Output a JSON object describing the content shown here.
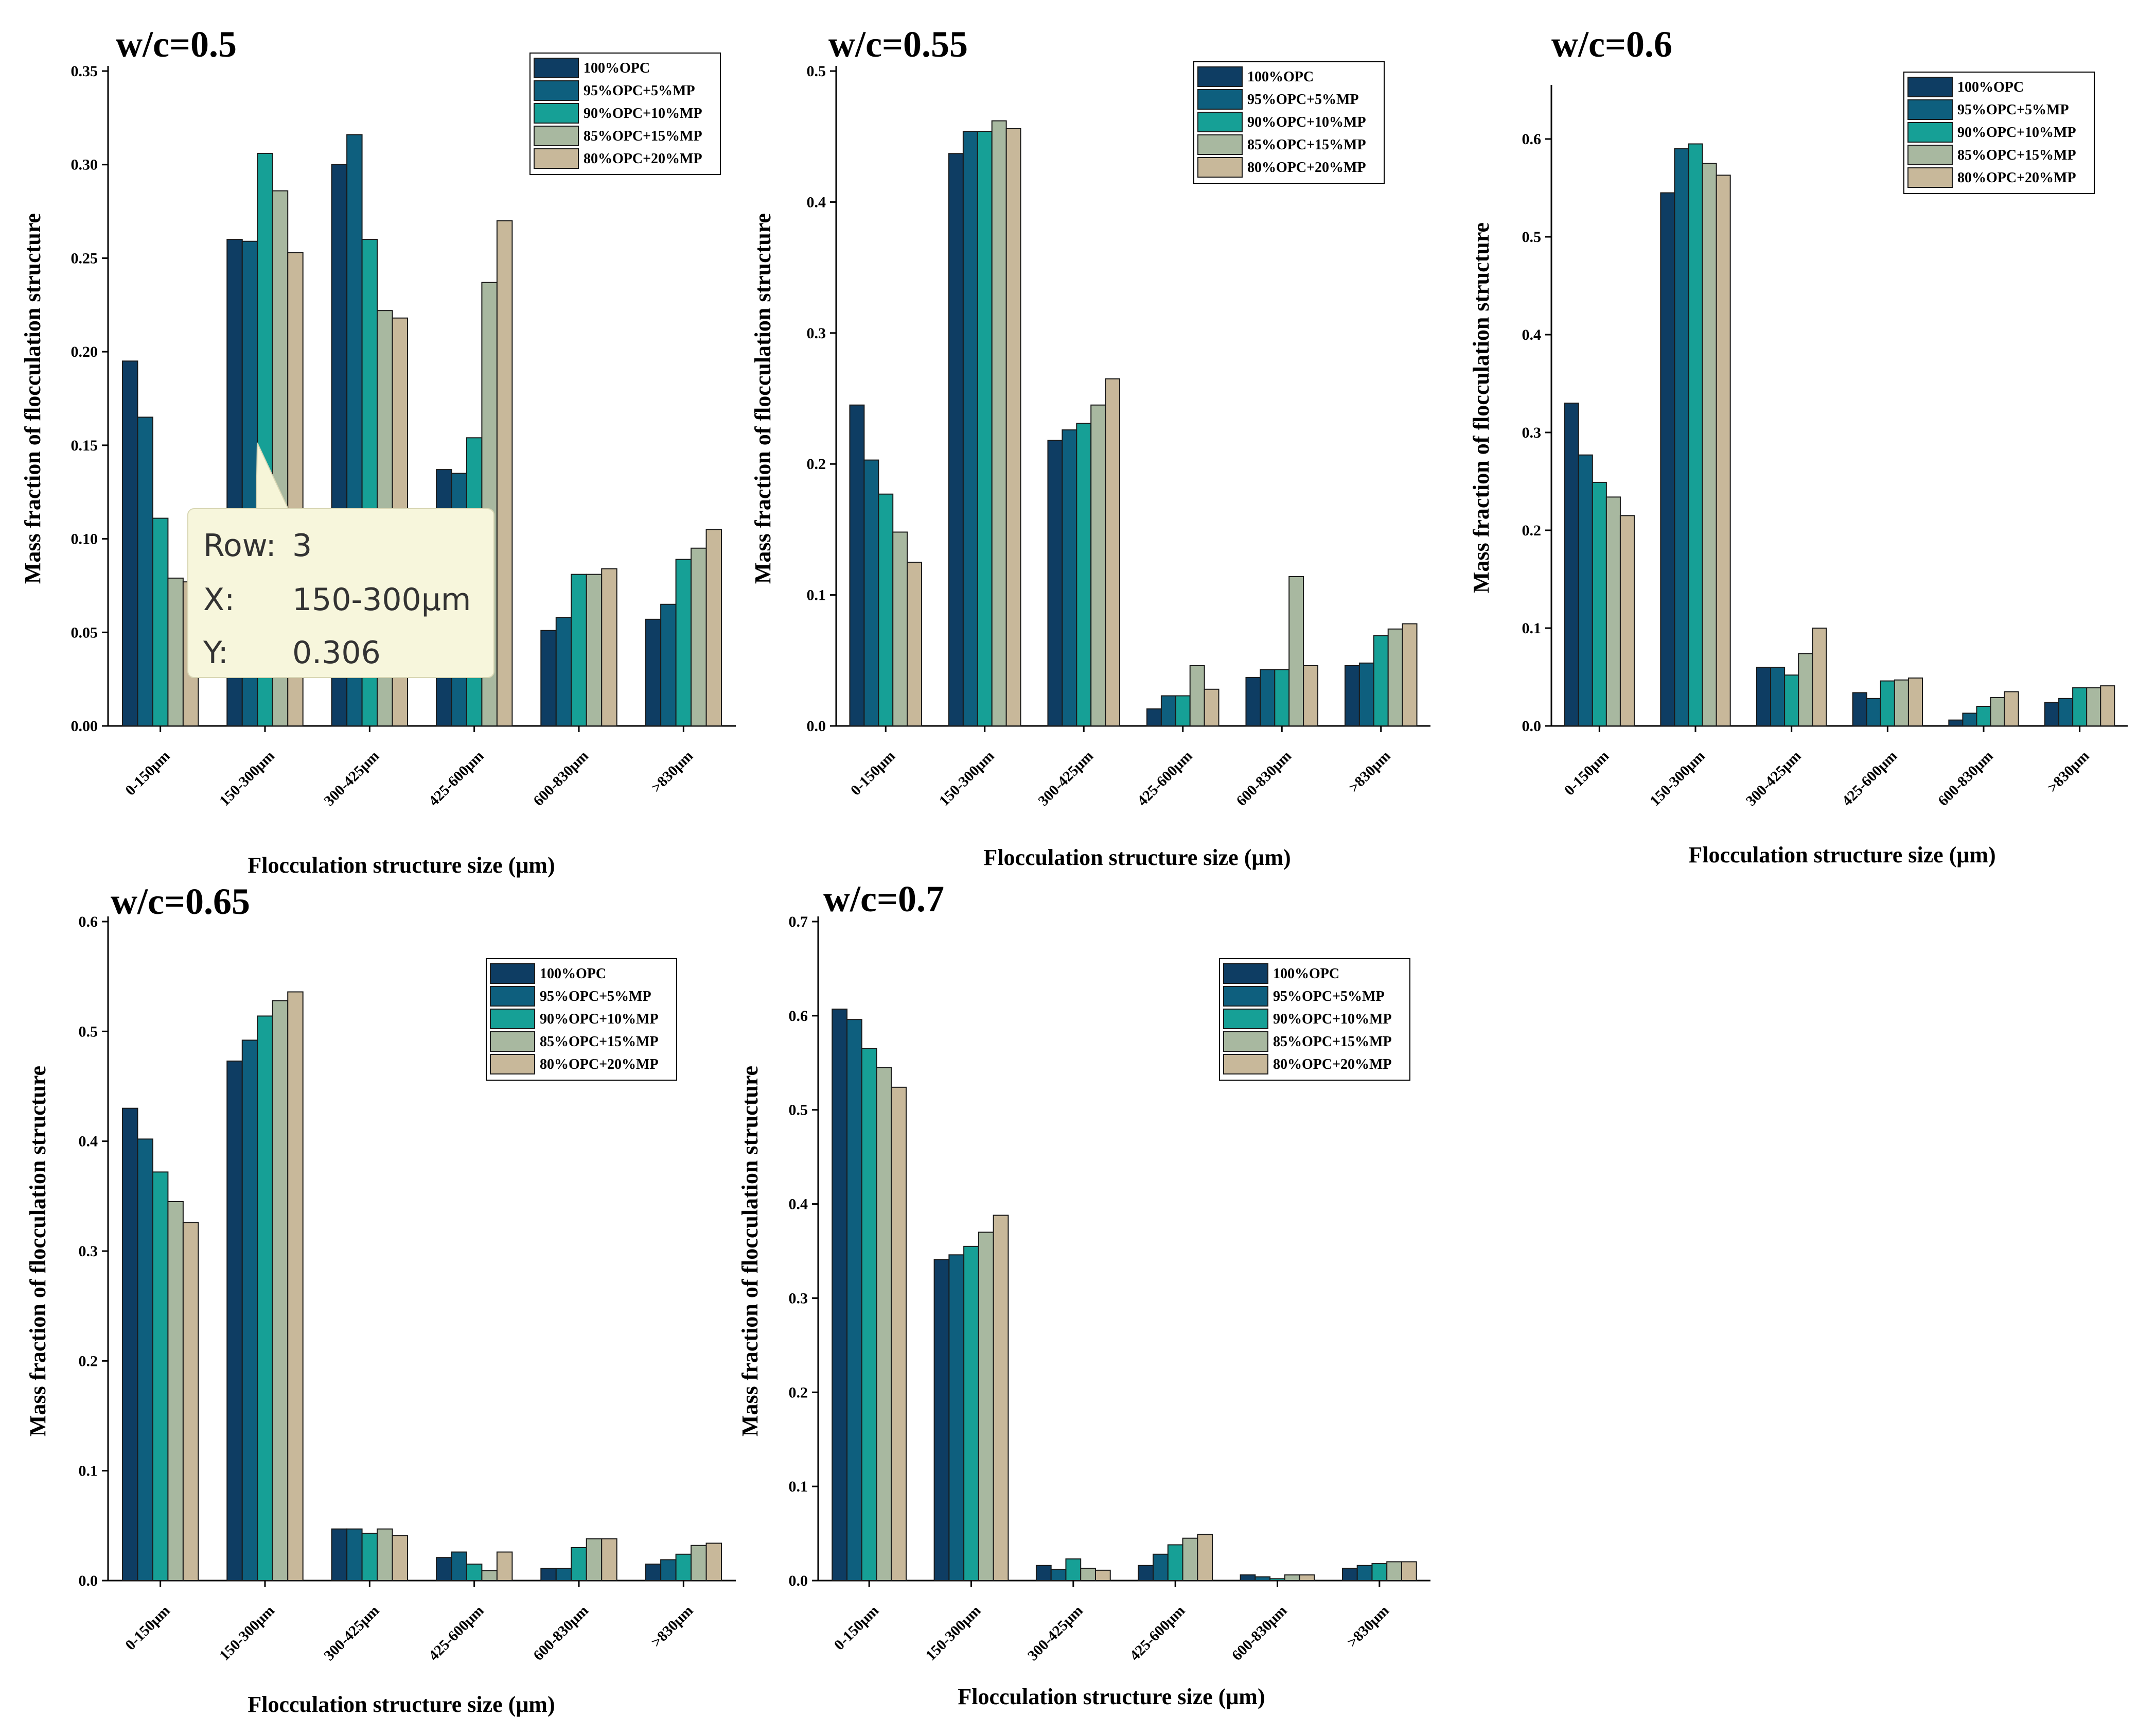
{
  "figure": {
    "colors": [
      "#0e3d63",
      "#0e5f7e",
      "#16a096",
      "#a8b8a0",
      "#c8b89a"
    ],
    "tooltip": {
      "row_label": "Row:",
      "row_value": "3",
      "x_label": "X:",
      "x_value": "150-300μm",
      "y_label": "Y:",
      "y_value": "0.306"
    }
  },
  "chart_data": [
    {
      "type": "bar",
      "title": "w/c=0.5",
      "xlabel": "Flocculation structure size (μm)",
      "ylabel": "Mass fraction of flocculation structure",
      "ylim": [
        0,
        0.35
      ],
      "yticks": [
        "0.00",
        "0.05",
        "0.10",
        "0.15",
        "0.20",
        "0.25",
        "0.30",
        "0.35"
      ],
      "categories": [
        "0-150μm",
        "150-300μm",
        "300-425μm",
        "425-600μm",
        "600-830μm",
        ">830μm"
      ],
      "series": [
        {
          "name": "100%OPC",
          "values": [
            0.195,
            0.26,
            0.3,
            0.137,
            0.051,
            0.057
          ]
        },
        {
          "name": "95%OPC+5%MP",
          "values": [
            0.165,
            0.259,
            0.316,
            0.135,
            0.058,
            0.065
          ]
        },
        {
          "name": "90%OPC+10%MP",
          "values": [
            0.111,
            0.306,
            0.26,
            0.154,
            0.081,
            0.089
          ]
        },
        {
          "name": "85%OPC+15%MP",
          "values": [
            0.079,
            0.286,
            0.222,
            0.237,
            0.081,
            0.095
          ]
        },
        {
          "name": "80%OPC+20%MP",
          "values": [
            0.077,
            0.253,
            0.218,
            0.27,
            0.084,
            0.105
          ]
        }
      ]
    },
    {
      "type": "bar",
      "title": "w/c=0.55",
      "xlabel": "Flocculation structure size (μm)",
      "ylabel": "Mass fraction of flocculation structure",
      "ylim": [
        0,
        0.5
      ],
      "yticks": [
        "0.0",
        "0.1",
        "0.2",
        "0.3",
        "0.4",
        "0.5"
      ],
      "categories": [
        "0-150μm",
        "150-300μm",
        "300-425μm",
        "425-600μm",
        "600-830μm",
        ">830μm"
      ],
      "series": [
        {
          "name": "100%OPC",
          "values": [
            0.245,
            0.437,
            0.218,
            0.013,
            0.037,
            0.046
          ]
        },
        {
          "name": "95%OPC+5%MP",
          "values": [
            0.203,
            0.454,
            0.226,
            0.023,
            0.043,
            0.048
          ]
        },
        {
          "name": "90%OPC+10%MP",
          "values": [
            0.177,
            0.454,
            0.231,
            0.023,
            0.043,
            0.069
          ]
        },
        {
          "name": "85%OPC+15%MP",
          "values": [
            0.148,
            0.462,
            0.245,
            0.046,
            0.114,
            0.074
          ]
        },
        {
          "name": "80%OPC+20%MP",
          "values": [
            0.125,
            0.456,
            0.265,
            0.028,
            0.046,
            0.078
          ]
        }
      ]
    },
    {
      "type": "bar",
      "title": "w/c=0.6",
      "xlabel": "Flocculation structure size (μm)",
      "ylabel": "Mass fraction of flocculation structure",
      "ylim": [
        0,
        0.65
      ],
      "yticks": [
        "0.0",
        "0.1",
        "0.2",
        "0.3",
        "0.4",
        "0.5",
        "0.6"
      ],
      "categories": [
        "0-150μm",
        "150-300μm",
        "300-425μm",
        "425-600μm",
        "600-830μm",
        ">830μm"
      ],
      "series": [
        {
          "name": "100%OPC",
          "values": [
            0.33,
            0.545,
            0.06,
            0.034,
            0.006,
            0.024
          ]
        },
        {
          "name": "95%OPC+5%MP",
          "values": [
            0.277,
            0.59,
            0.06,
            0.028,
            0.013,
            0.028
          ]
        },
        {
          "name": "90%OPC+10%MP",
          "values": [
            0.249,
            0.595,
            0.052,
            0.046,
            0.02,
            0.039
          ]
        },
        {
          "name": "85%OPC+15%MP",
          "values": [
            0.234,
            0.575,
            0.074,
            0.047,
            0.029,
            0.039
          ]
        },
        {
          "name": "80%OPC+20%MP",
          "values": [
            0.215,
            0.563,
            0.1,
            0.049,
            0.035,
            0.041
          ]
        }
      ]
    },
    {
      "type": "bar",
      "title": "w/c=0.65",
      "xlabel": "Flocculation structure size (μm)",
      "ylabel": "Mass fraction of flocculation structure",
      "ylim": [
        0,
        0.6
      ],
      "yticks": [
        "0.0",
        "0.1",
        "0.2",
        "0.3",
        "0.4",
        "0.5",
        "0.6"
      ],
      "categories": [
        "0-150μm",
        "150-300μm",
        "300-425μm",
        "425-600μm",
        "600-830μm",
        ">830μm"
      ],
      "series": [
        {
          "name": "100%OPC",
          "values": [
            0.43,
            0.473,
            0.047,
            0.021,
            0.011,
            0.015
          ]
        },
        {
          "name": "95%OPC+5%MP",
          "values": [
            0.402,
            0.492,
            0.047,
            0.026,
            0.011,
            0.019
          ]
        },
        {
          "name": "90%OPC+10%MP",
          "values": [
            0.372,
            0.514,
            0.043,
            0.015,
            0.03,
            0.024
          ]
        },
        {
          "name": "85%OPC+15%MP",
          "values": [
            0.345,
            0.528,
            0.047,
            0.009,
            0.038,
            0.032
          ]
        },
        {
          "name": "80%OPC+20%MP",
          "values": [
            0.326,
            0.536,
            0.041,
            0.026,
            0.038,
            0.034
          ]
        }
      ]
    },
    {
      "type": "bar",
      "title": "w/c=0.7",
      "xlabel": "Flocculation structure size (μm)",
      "ylabel": "Mass fraction of flocculation structure",
      "ylim": [
        0,
        0.7
      ],
      "yticks": [
        "0.0",
        "0.1",
        "0.2",
        "0.3",
        "0.4",
        "0.5",
        "0.6",
        "0.7"
      ],
      "categories": [
        "0-150μm",
        "150-300μm",
        "300-425μm",
        "425-600μm",
        "600-830μm",
        ">830μm"
      ],
      "series": [
        {
          "name": "100%OPC",
          "values": [
            0.607,
            0.341,
            0.016,
            0.016,
            0.006,
            0.013
          ]
        },
        {
          "name": "95%OPC+5%MP",
          "values": [
            0.596,
            0.346,
            0.012,
            0.028,
            0.004,
            0.016
          ]
        },
        {
          "name": "90%OPC+10%MP",
          "values": [
            0.565,
            0.355,
            0.023,
            0.038,
            0.002,
            0.018
          ]
        },
        {
          "name": "85%OPC+15%MP",
          "values": [
            0.545,
            0.37,
            0.013,
            0.045,
            0.006,
            0.02
          ]
        },
        {
          "name": "80%OPC+20%MP",
          "values": [
            0.524,
            0.388,
            0.011,
            0.049,
            0.006,
            0.02
          ]
        }
      ]
    }
  ]
}
